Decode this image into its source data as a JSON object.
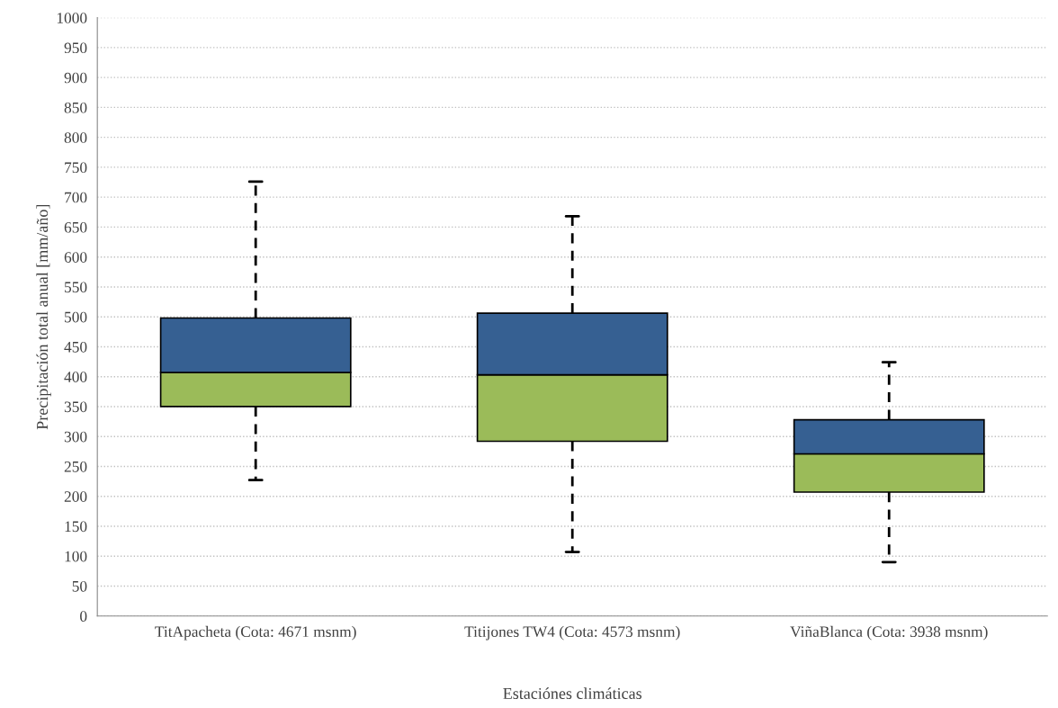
{
  "chart_data": {
    "type": "box",
    "xlabel": "Estaciónes climáticas",
    "ylabel": "Precipitación total anual [mm/año]",
    "categories": [
      "TitApacheta (Cota: 4671 msnm)",
      "Titijones TW4 (Cota: 4573 msnm)",
      "ViñaBlanca (Cota: 3938 msnm)"
    ],
    "series": [
      {
        "color": "#366092",
        "colors": [
          "#9bbb59",
          "#9bbb59",
          "#9bbb59"
        ],
        "boxes": [
          {
            "low": 227,
            "q1": 350,
            "median": 407,
            "q3": 498,
            "high": 726
          },
          {
            "low": 107,
            "q1": 292,
            "median": 403,
            "q3": 506,
            "high": 668
          },
          {
            "low": 90,
            "q1": 207,
            "median": 271,
            "q3": 328,
            "high": 424
          }
        ]
      }
    ],
    "ylim": [
      0,
      1000
    ],
    "yticks": [
      0,
      50,
      100,
      150,
      200,
      250,
      300,
      350,
      400,
      450,
      500,
      550,
      600,
      650,
      700,
      750,
      800,
      850,
      900,
      950,
      1000
    ],
    "grid": "y",
    "legend": false
  }
}
